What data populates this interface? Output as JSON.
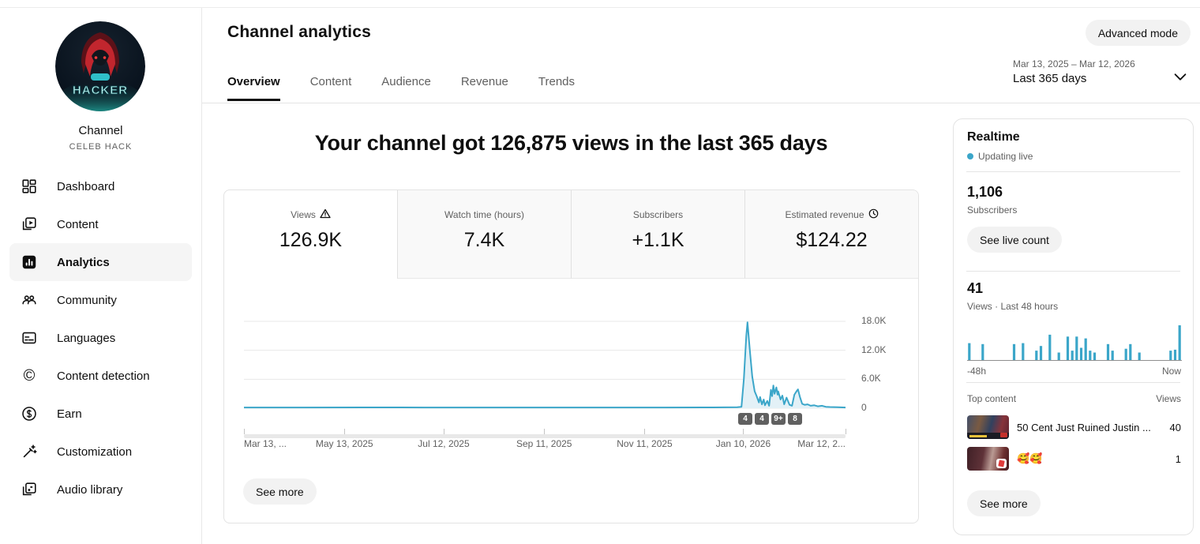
{
  "page": {
    "title": "Channel analytics"
  },
  "topbar": {
    "advanced_mode_label": "Advanced mode",
    "date_range": "Mar 13, 2025 – Mar 12, 2026",
    "date_range_label": "Last 365 days"
  },
  "tabs": [
    {
      "label": "Overview",
      "active": true
    },
    {
      "label": "Content",
      "active": false
    },
    {
      "label": "Audience",
      "active": false
    },
    {
      "label": "Revenue",
      "active": false
    },
    {
      "label": "Trends",
      "active": false
    }
  ],
  "sidebar": {
    "channel_name": "Channel",
    "channel_handle": "CELEB HACK",
    "avatar_text": "HACKER",
    "items": [
      {
        "label": "Dashboard",
        "icon": "dashboard-icon",
        "active": false
      },
      {
        "label": "Content",
        "icon": "content-icon",
        "active": false
      },
      {
        "label": "Analytics",
        "icon": "analytics-icon",
        "active": true
      },
      {
        "label": "Community",
        "icon": "community-icon",
        "active": false
      },
      {
        "label": "Languages",
        "icon": "languages-icon",
        "active": false
      },
      {
        "label": "Content detection",
        "icon": "copyright-icon",
        "active": false
      },
      {
        "label": "Earn",
        "icon": "dollar-icon",
        "active": false
      },
      {
        "label": "Customization",
        "icon": "magic-wand-icon",
        "active": false
      },
      {
        "label": "Audio library",
        "icon": "music-note-icon",
        "active": false
      }
    ]
  },
  "headline": "Your channel got 126,875 views in the last 365 days",
  "metrics": [
    {
      "label": "Views",
      "icon": "warning-icon",
      "value": "126.9K",
      "active": true
    },
    {
      "label": "Watch time (hours)",
      "icon": null,
      "value": "7.4K",
      "active": false
    },
    {
      "label": "Subscribers",
      "icon": null,
      "value": "+1.1K",
      "active": false
    },
    {
      "label": "Estimated revenue",
      "icon": "clock-icon",
      "value": "$124.22",
      "active": false
    }
  ],
  "main_chart_see_more": "See more",
  "chart_data": [
    {
      "type": "line",
      "title": "Channel views per day, last 365 days",
      "line_color": "#3ba6c9",
      "fill_color": "#e3f1f7",
      "ylim": [
        0,
        18000
      ],
      "y_ticks": [
        "18.0K",
        "12.0K",
        "6.0K",
        "0"
      ],
      "y_tick_values": [
        18000,
        12000,
        6000,
        0
      ],
      "x_ticks": [
        "Mar 13, ...",
        "May 13, 2025",
        "Jul 12, 2025",
        "Sep 11, 2025",
        "Nov 11, 2025",
        "Jan 10, 2026",
        "Mar 12, 2..."
      ],
      "x_tick_fracs": [
        0,
        16.7,
        33.2,
        49.9,
        66.6,
        83.0,
        100
      ],
      "badges": [
        "4",
        "4",
        "9+",
        "8"
      ],
      "grid": true,
      "points": [
        [
          0,
          150
        ],
        [
          10,
          150
        ],
        [
          20,
          160
        ],
        [
          30,
          140
        ],
        [
          40,
          150
        ],
        [
          50,
          150
        ],
        [
          60,
          140
        ],
        [
          70,
          150
        ],
        [
          78,
          160
        ],
        [
          82,
          200
        ],
        [
          82.7,
          300
        ],
        [
          83.1,
          6000
        ],
        [
          83.5,
          15000
        ],
        [
          83.7,
          17800
        ],
        [
          84.1,
          12000
        ],
        [
          84.5,
          6500
        ],
        [
          84.9,
          3500
        ],
        [
          85.2,
          2600
        ],
        [
          85.6,
          1200
        ],
        [
          85.8,
          2300
        ],
        [
          86.1,
          800
        ],
        [
          86.4,
          1800
        ],
        [
          86.6,
          600
        ],
        [
          87.0,
          1500
        ],
        [
          87.3,
          500
        ],
        [
          87.6,
          3800
        ],
        [
          87.8,
          2500
        ],
        [
          88.0,
          4700
        ],
        [
          88.2,
          3000
        ],
        [
          88.5,
          4300
        ],
        [
          88.7,
          2800
        ],
        [
          88.8,
          3500
        ],
        [
          89.2,
          1800
        ],
        [
          89.5,
          2600
        ],
        [
          89.8,
          800
        ],
        [
          90.2,
          2200
        ],
        [
          90.4,
          1600
        ],
        [
          90.7,
          700
        ],
        [
          91.1,
          500
        ],
        [
          91.5,
          2800
        ],
        [
          91.9,
          3600
        ],
        [
          92.1,
          3900
        ],
        [
          92.4,
          2400
        ],
        [
          92.8,
          900
        ],
        [
          93.2,
          700
        ],
        [
          93.7,
          800
        ],
        [
          94.2,
          500
        ],
        [
          94.8,
          600
        ],
        [
          95.4,
          400
        ],
        [
          96.1,
          500
        ],
        [
          96.7,
          300
        ],
        [
          97.4,
          250
        ],
        [
          98.7,
          200
        ],
        [
          100,
          150
        ]
      ]
    },
    {
      "type": "bar",
      "title": "Views per hour, last 48 hours",
      "bar_color": "#3ba6c9",
      "x_left_label": "-48h",
      "x_right_label": "Now",
      "values": [
        18,
        0,
        0,
        17,
        0,
        0,
        0,
        0,
        0,
        0,
        17,
        0,
        18,
        0,
        0,
        10,
        15,
        0,
        27,
        0,
        8,
        0,
        25,
        10,
        25,
        13,
        23,
        10,
        8,
        0,
        0,
        17,
        10,
        0,
        0,
        12,
        17,
        0,
        8,
        0,
        0,
        0,
        0,
        0,
        0,
        10,
        11,
        37
      ]
    }
  ],
  "realtime": {
    "title": "Realtime",
    "status": "Updating live",
    "subscribers": "1,106",
    "subscribers_label": "Subscribers",
    "live_count_label": "See live count",
    "views_48h": "41",
    "views_48h_label": "Views · Last 48 hours",
    "axis_left": "-48h",
    "axis_right": "Now",
    "top_content_header": "Top content",
    "views_header": "Views",
    "top_content": [
      {
        "title": "50 Cent Just Ruined Justin ...",
        "views": "40"
      },
      {
        "title": "🥰🥰",
        "views": "1"
      }
    ],
    "see_more_label": "See more"
  }
}
